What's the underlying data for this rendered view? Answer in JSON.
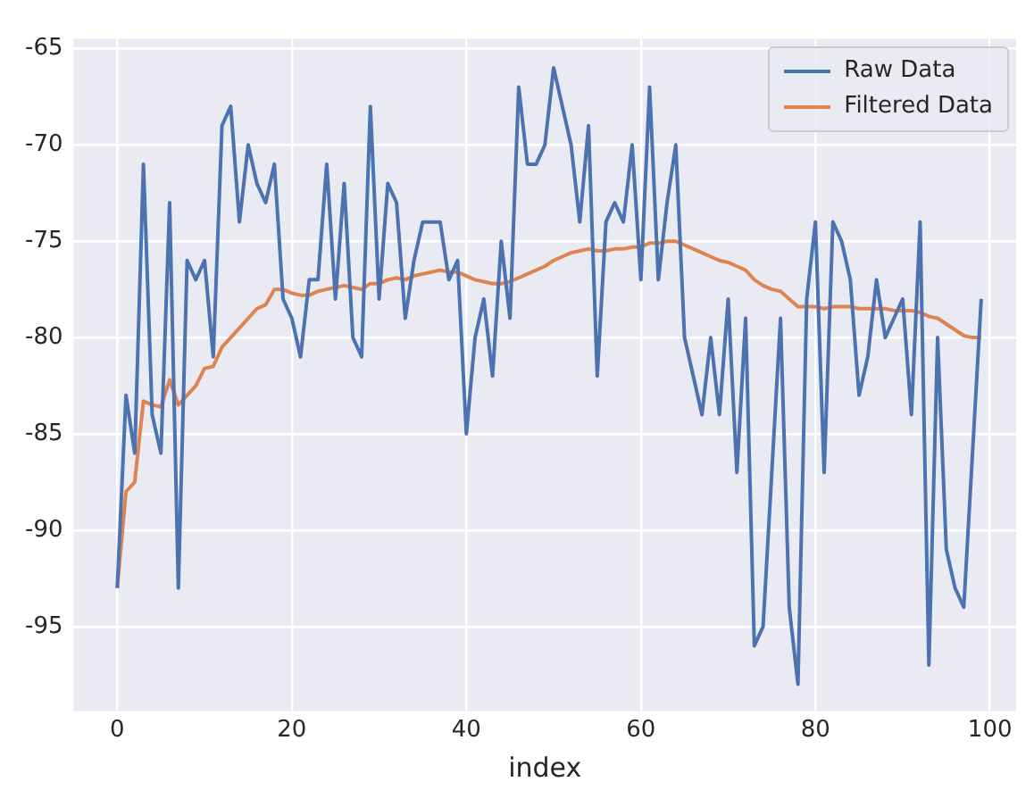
{
  "chart_data": {
    "type": "line",
    "xlabel": "index",
    "x": [
      0,
      1,
      2,
      3,
      4,
      5,
      6,
      7,
      8,
      9,
      10,
      11,
      12,
      13,
      14,
      15,
      16,
      17,
      18,
      19,
      20,
      21,
      22,
      23,
      24,
      25,
      26,
      27,
      28,
      29,
      30,
      31,
      32,
      33,
      34,
      35,
      36,
      37,
      38,
      39,
      40,
      41,
      42,
      43,
      44,
      45,
      46,
      47,
      48,
      49,
      50,
      51,
      52,
      53,
      54,
      55,
      56,
      57,
      58,
      59,
      60,
      61,
      62,
      63,
      64,
      65,
      66,
      67,
      68,
      69,
      70,
      71,
      72,
      73,
      74,
      75,
      76,
      77,
      78,
      79,
      80,
      81,
      82,
      83,
      84,
      85,
      86,
      87,
      88,
      89,
      90,
      91,
      92,
      93,
      94,
      95,
      96,
      97,
      98,
      99
    ],
    "series": [
      {
        "name": "Raw Data",
        "color": "#4c72b0",
        "values": [
          -93,
          -83,
          -86,
          -71,
          -84,
          -86,
          -73,
          -93,
          -76,
          -77,
          -76,
          -81,
          -69,
          -68,
          -74,
          -70,
          -72,
          -73,
          -71,
          -78,
          -79,
          -81,
          -77,
          -77,
          -71,
          -78,
          -72,
          -80,
          -81,
          -68,
          -78,
          -72,
          -73,
          -79,
          -76,
          -74,
          -74,
          -74,
          -77,
          -76,
          -85,
          -80,
          -78,
          -82,
          -75,
          -79,
          -67,
          -71,
          -71,
          -70,
          -66,
          -68,
          -70,
          -74,
          -69,
          -82,
          -74,
          -73,
          -74,
          -70,
          -77,
          -67,
          -77,
          -73,
          -70,
          -80,
          -82,
          -84,
          -80,
          -84,
          -78,
          -87,
          -79,
          -96,
          -95,
          -87,
          -79,
          -94,
          -98,
          -78,
          -74,
          -87,
          -74,
          -75,
          -77,
          -83,
          -81,
          -77,
          -80,
          -79,
          -78,
          -84,
          -74,
          -97,
          -80,
          -91,
          -93,
          -94,
          -86,
          -78
        ]
      },
      {
        "name": "Filtered Data",
        "color": "#dd8452",
        "values": [
          -93,
          -88,
          -87.5,
          -83.3,
          -83.5,
          -83.6,
          -82.2,
          -83.5,
          -83,
          -82.5,
          -81.6,
          -81.5,
          -80.5,
          -80,
          -79.5,
          -79,
          -78.5,
          -78.3,
          -77.5,
          -77.5,
          -77.7,
          -77.8,
          -77.8,
          -77.6,
          -77.5,
          -77.4,
          -77.3,
          -77.4,
          -77.5,
          -77.2,
          -77.2,
          -77,
          -76.9,
          -77,
          -76.8,
          -76.7,
          -76.6,
          -76.5,
          -76.6,
          -76.6,
          -76.8,
          -77,
          -77.1,
          -77.2,
          -77.2,
          -77.1,
          -76.9,
          -76.7,
          -76.5,
          -76.3,
          -76,
          -75.8,
          -75.6,
          -75.5,
          -75.4,
          -75.5,
          -75.5,
          -75.4,
          -75.4,
          -75.3,
          -75.3,
          -75.1,
          -75.1,
          -75,
          -75,
          -75.2,
          -75.4,
          -75.6,
          -75.8,
          -76,
          -76.1,
          -76.3,
          -76.5,
          -77,
          -77.3,
          -77.5,
          -77.6,
          -78,
          -78.4,
          -78.4,
          -78.4,
          -78.5,
          -78.4,
          -78.4,
          -78.4,
          -78.5,
          -78.5,
          -78.5,
          -78.5,
          -78.6,
          -78.6,
          -78.6,
          -78.7,
          -78.9,
          -79,
          -79.3,
          -79.6,
          -79.9,
          -80,
          -80
        ]
      }
    ],
    "xlim": [
      -5,
      103
    ],
    "xticks": [
      0,
      20,
      40,
      60,
      80,
      100
    ],
    "ylim": [
      -99.4,
      -64.5
    ],
    "yticks": [
      -95,
      -90,
      -85,
      -80,
      -75,
      -70,
      -65
    ],
    "grid": true,
    "legend": "top right",
    "marker": "none",
    "line_style": "solid"
  }
}
